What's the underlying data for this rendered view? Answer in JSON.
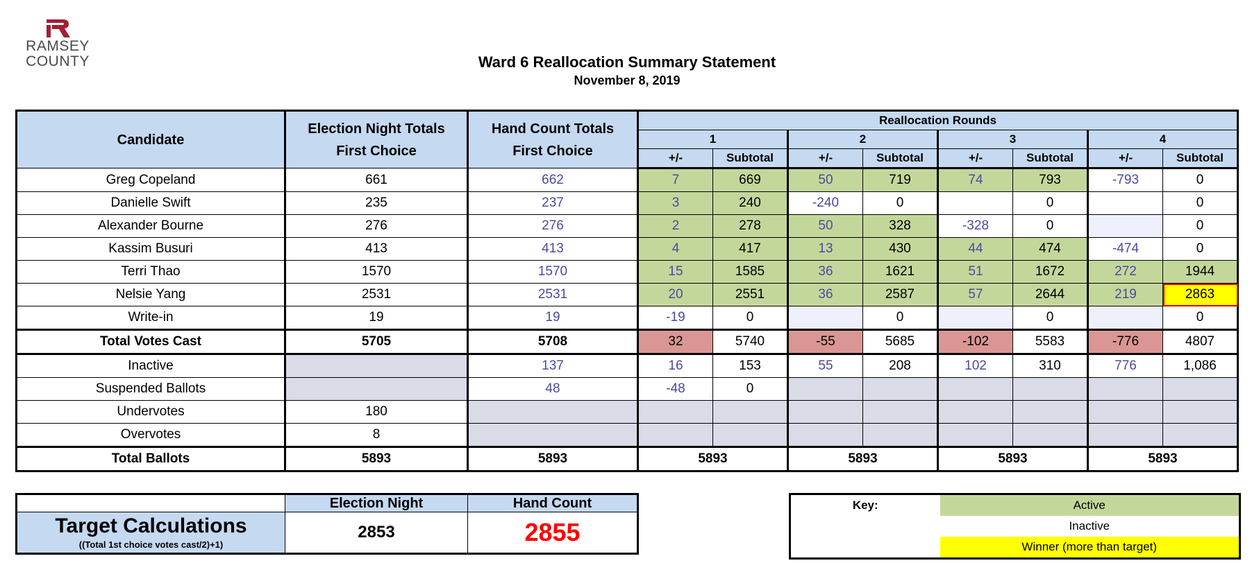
{
  "logo": {
    "line1": "RAMSEY",
    "line2": "COUNTY",
    "color": "#a31f34"
  },
  "title": "Ward 6 Reallocation Summary Statement",
  "date": "November 8, 2019",
  "summary_table": {
    "headers": {
      "candidate": "Candidate",
      "election_night_1": "Election Night Totals",
      "election_night_2": "First Choice",
      "hand_count_1": "Hand Count Totals",
      "hand_count_2": "First Choice",
      "reallocation": "Reallocation Rounds",
      "rounds": [
        "1",
        "2",
        "3",
        "4"
      ],
      "delta": "+/-",
      "subtotal": "Subtotal"
    },
    "rows": {
      "copeland": {
        "name": "Greg Copeland",
        "en": "661",
        "hc": "662",
        "r": [
          "7",
          "669",
          "50",
          "719",
          "74",
          "793",
          "-793",
          "0"
        ]
      },
      "swift": {
        "name": "Danielle Swift",
        "en": "235",
        "hc": "237",
        "r": [
          "3",
          "240",
          "-240",
          "0",
          "",
          "0",
          "",
          "0"
        ]
      },
      "bourne": {
        "name": "Alexander Bourne",
        "en": "276",
        "hc": "276",
        "r": [
          "2",
          "278",
          "50",
          "328",
          "-328",
          "0",
          "",
          "0"
        ]
      },
      "busuri": {
        "name": "Kassim Busuri",
        "en": "413",
        "hc": "413",
        "r": [
          "4",
          "417",
          "13",
          "430",
          "44",
          "474",
          "-474",
          "0"
        ]
      },
      "thao": {
        "name": "Terri Thao",
        "en": "1570",
        "hc": "1570",
        "r": [
          "15",
          "1585",
          "36",
          "1621",
          "51",
          "1672",
          "272",
          "1944"
        ]
      },
      "yang": {
        "name": "Nelsie Yang",
        "en": "2531",
        "hc": "2531",
        "r": [
          "20",
          "2551",
          "36",
          "2587",
          "57",
          "2644",
          "219",
          "2863"
        ]
      },
      "writein": {
        "name": "Write-in",
        "en": "19",
        "hc": "19",
        "r": [
          "-19",
          "0",
          "",
          "0",
          "",
          "0",
          "",
          "0"
        ]
      },
      "total_votes": {
        "name": "Total Votes Cast",
        "en": "5705",
        "hc": "5708",
        "r": [
          "32",
          "5740",
          "-55",
          "5685",
          "-102",
          "5583",
          "-776",
          "4807"
        ]
      },
      "inactive": {
        "name": "Inactive",
        "hc": "137",
        "r": [
          "16",
          "153",
          "55",
          "208",
          "102",
          "310",
          "776",
          "1,086"
        ]
      },
      "suspended": {
        "name": "Suspended Ballots",
        "hc": "48",
        "r": [
          "-48",
          "0"
        ]
      },
      "undervotes": {
        "name": "Undervotes",
        "en": "180"
      },
      "overvotes": {
        "name": "Overvotes",
        "en": "8"
      },
      "total_ballots": {
        "name": "Total Ballots",
        "en": "5893",
        "hc": "5893",
        "r": [
          "5893",
          "5893",
          "5893",
          "5893"
        ]
      }
    }
  },
  "target": {
    "header_en": "Election Night",
    "header_hc": "Hand Count",
    "label": "Target Calculations",
    "formula": "((Total 1st choice votes cast/2)+1)",
    "en_value": "2853",
    "hc_value": "2855"
  },
  "key": {
    "label": "Key:",
    "active": "Active",
    "inactive": "Inactive",
    "winner": "Winner (more than target)"
  },
  "colors": {
    "header_blue": "#c5d9f1",
    "active_green": "#c4d79b",
    "negative_red": "#da9694",
    "winner_yellow": "#ffff00",
    "target_red": "#ff0000"
  }
}
